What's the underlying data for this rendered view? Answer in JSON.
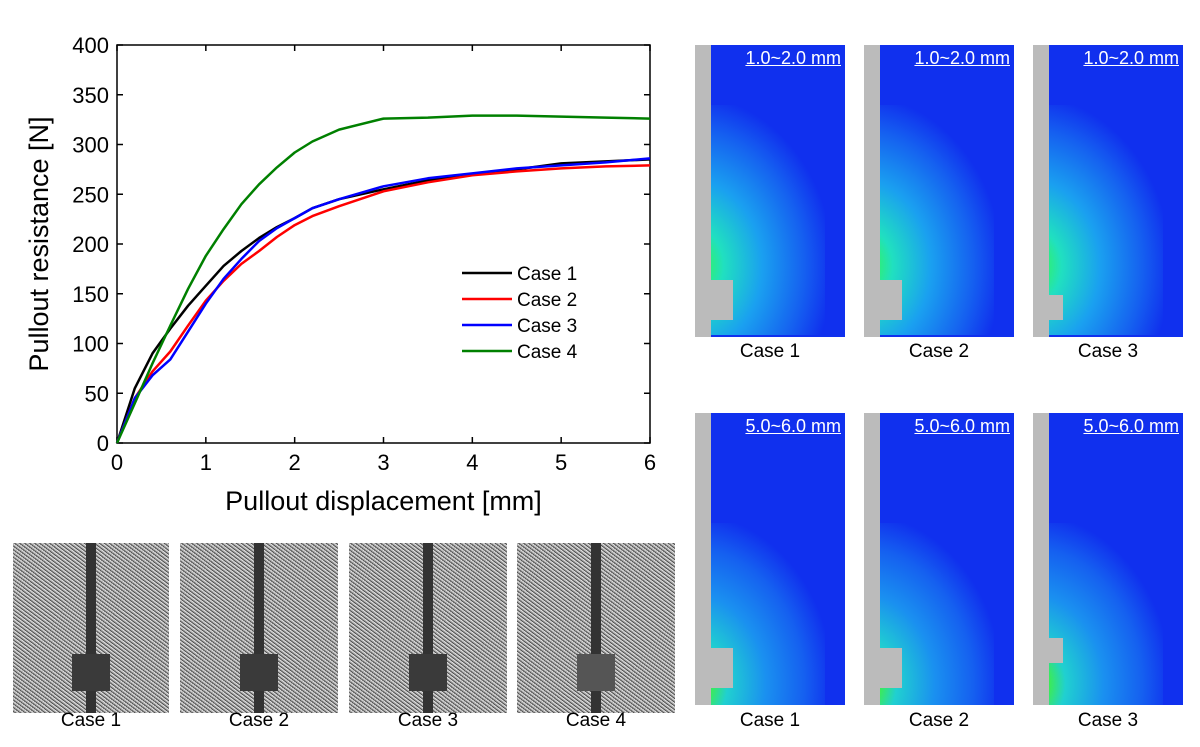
{
  "chart_data": {
    "type": "line",
    "xlabel": "Pullout displacement [mm]",
    "ylabel": "Pullout resistance [N]",
    "xlim": [
      0,
      6
    ],
    "ylim": [
      0,
      400
    ],
    "xticks": [
      "0",
      "1",
      "2",
      "3",
      "4",
      "5",
      "6"
    ],
    "yticks": [
      "0",
      "50",
      "100",
      "150",
      "200",
      "250",
      "300",
      "350",
      "400"
    ],
    "legend_position": "center-right",
    "x": [
      0,
      0.2,
      0.4,
      0.6,
      0.8,
      1,
      1.2,
      1.4,
      1.6,
      1.8,
      2,
      2.2,
      2.5,
      3,
      3.5,
      4,
      4.5,
      5,
      5.5,
      6
    ],
    "series": [
      {
        "name": "Case 1",
        "color": "#000000",
        "values": [
          0,
          55,
          90,
          115,
          138,
          158,
          178,
          193,
          206,
          217,
          226,
          236,
          245,
          255,
          264,
          270,
          275,
          281,
          283,
          285
        ]
      },
      {
        "name": "Case 2",
        "color": "#ff0000",
        "values": [
          0,
          45,
          72,
          92,
          118,
          143,
          163,
          180,
          193,
          207,
          219,
          228,
          238,
          253,
          262,
          269,
          273,
          276,
          278,
          279
        ]
      },
      {
        "name": "Case 3",
        "color": "#0000ff",
        "values": [
          0,
          45,
          68,
          84,
          112,
          140,
          165,
          185,
          203,
          216,
          226,
          236,
          245,
          258,
          266,
          271,
          276,
          279,
          282,
          286
        ]
      },
      {
        "name": "Case 4",
        "color": "#008000",
        "values": [
          0,
          40,
          80,
          118,
          155,
          188,
          215,
          240,
          260,
          277,
          292,
          303,
          315,
          326,
          327,
          329,
          329,
          328,
          327,
          326
        ]
      }
    ]
  },
  "photos": [
    {
      "label": "Case 1"
    },
    {
      "label": "Case 2"
    },
    {
      "label": "Case 3"
    },
    {
      "label": "Case 4"
    }
  ],
  "heatmaps_top": [
    {
      "range": "1.0~2.0 mm",
      "label": "Case 1"
    },
    {
      "range": "1.0~2.0 mm",
      "label": "Case 2"
    },
    {
      "range": "1.0~2.0 mm",
      "label": "Case 3"
    }
  ],
  "heatmaps_bottom": [
    {
      "range": "5.0~6.0 mm",
      "label": "Case 1"
    },
    {
      "range": "5.0~6.0 mm",
      "label": "Case 2"
    },
    {
      "range": "5.0~6.0 mm",
      "label": "Case 3"
    }
  ]
}
